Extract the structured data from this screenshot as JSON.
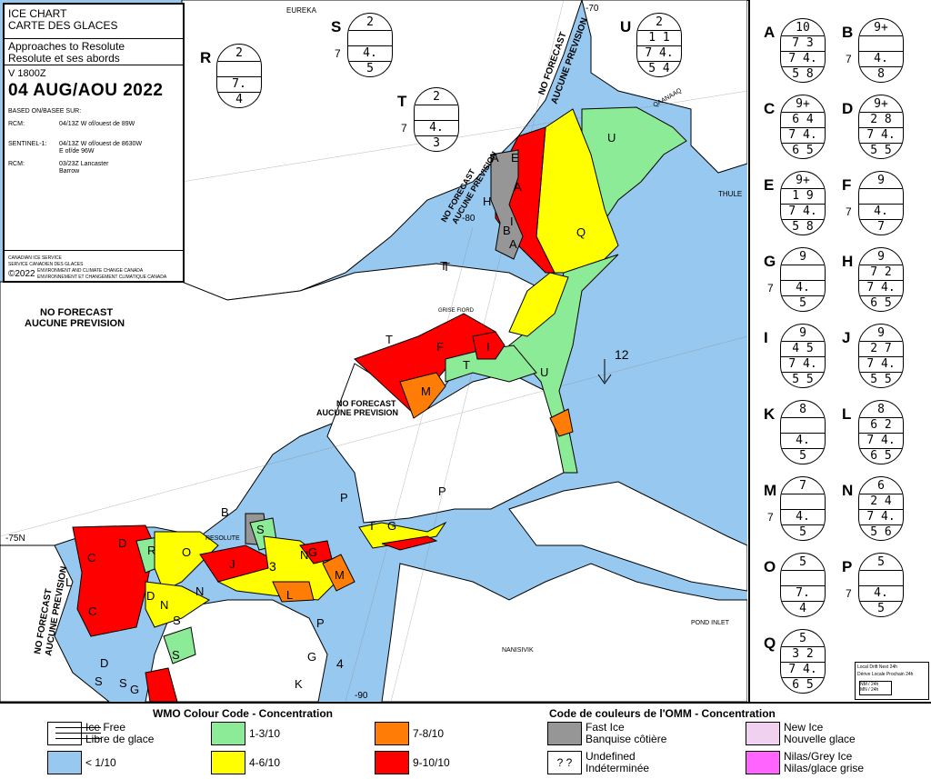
{
  "info": {
    "title1": "ICE CHART",
    "title2": "CARTE DES GLACES",
    "subtitle1": "Approaches to Resolute",
    "subtitle2": "Resolute et ses abords",
    "version": "V 1800Z",
    "date": "04 AUG/AOU 2022",
    "based_on": "BASED ON/BASEE SUR:",
    "sources": [
      {
        "name": "RCM:",
        "line1": "04/13Z W of/ouest de 89W",
        "line2": ""
      },
      {
        "name": "SENTINEL-1:",
        "line1": "04/13Z W of/ouest de 8630W",
        "line2": "E of/de 96W"
      },
      {
        "name": "RCM:",
        "line1": "03/23Z Lancaster",
        "line2": "Barrow"
      }
    ],
    "org1": "CANADIAN ICE SERVICE",
    "org2": "SERVICE CANADIEN DES GLACES",
    "copyright": "©2022",
    "org3": "ENVIRONMENT AND CLIMATE CHANGE CANADA",
    "org4": "ENVIRONNEMENT ET CHANGEMENT CLIMATIQUE CANADA"
  },
  "map_labels": {
    "eureka": "EUREKA",
    "thule": "THULE",
    "qaanaaq": "QAANAAQ",
    "resolute": "RESOLUTE",
    "nanisivik": "NANISIVIK",
    "pond_inlet": "POND INLET",
    "grise_fiord": "GRISE FIORD",
    "no_forecast_en": "NO FORECAST",
    "no_forecast_fr": "AUCUNE PREVISION",
    "lon_70": "-70",
    "lon_80": "-80",
    "lon_90": "-90",
    "lat_75": "-75N",
    "drift_speed": "12",
    "drift_speed_2": "4",
    "drift_speed_3": "3",
    "drift_legend1": "Local Drift Next 24h",
    "drift_legend2": "Dérive Locale Prochain 24h",
    "drift_legend3": "NM / 24h",
    "drift_legend4": "MN / 24h"
  },
  "region_letters": [
    "A",
    "A",
    "A",
    "B",
    "E",
    "H",
    "I",
    "Q",
    "U",
    "T",
    "T",
    "F",
    "I",
    "M",
    "U",
    "T",
    "B",
    "P",
    "P",
    "T",
    "G",
    "S",
    "R",
    "O",
    "N",
    "D",
    "C",
    "C",
    "L",
    "D",
    "N",
    "S",
    "J",
    "N",
    "G",
    "M",
    "L",
    "S",
    "K",
    "G",
    "S",
    "D",
    "S",
    "G",
    "P",
    "T"
  ],
  "egg_codes": [
    {
      "letter": "R",
      "rows": [
        "2",
        "",
        "7.",
        "4"
      ],
      "side": ""
    },
    {
      "letter": "S",
      "rows": [
        "2",
        "",
        "4.",
        "5"
      ],
      "side": "7"
    },
    {
      "letter": "T",
      "rows": [
        "2",
        "",
        "4.",
        "3"
      ],
      "side": "7"
    },
    {
      "letter": "U",
      "rows": [
        "2",
        "1 1",
        "7 4.",
        "5 4"
      ],
      "side": ""
    },
    {
      "letter": "A",
      "rows": [
        "10",
        "7 3",
        "7 4.",
        "5 8"
      ],
      "side": ""
    },
    {
      "letter": "B",
      "rows": [
        "9+",
        "",
        "4.",
        "8"
      ],
      "side": "7"
    },
    {
      "letter": "C",
      "rows": [
        "9+",
        "6 4",
        "7 4.",
        "6 5"
      ],
      "side": ""
    },
    {
      "letter": "D",
      "rows": [
        "9+",
        "2 8",
        "7 4.",
        "5 5"
      ],
      "side": ""
    },
    {
      "letter": "E",
      "rows": [
        "9+",
        "1 9",
        "7 4.",
        "5 8"
      ],
      "side": ""
    },
    {
      "letter": "F",
      "rows": [
        "9",
        "",
        "4.",
        "7"
      ],
      "side": "7"
    },
    {
      "letter": "G",
      "rows": [
        "9",
        "",
        "4.",
        "5"
      ],
      "side": "7"
    },
    {
      "letter": "H",
      "rows": [
        "9",
        "7 2",
        "7 4.",
        "6 5"
      ],
      "side": ""
    },
    {
      "letter": "I",
      "rows": [
        "9",
        "4 5",
        "7 4.",
        "5 5"
      ],
      "side": ""
    },
    {
      "letter": "J",
      "rows": [
        "9",
        "2 7",
        "7 4.",
        "5 5"
      ],
      "side": ""
    },
    {
      "letter": "K",
      "rows": [
        "8",
        "",
        "4.",
        "5"
      ],
      "side": ""
    },
    {
      "letter": "L",
      "rows": [
        "8",
        "6 2",
        "7 4.",
        "6 5"
      ],
      "side": ""
    },
    {
      "letter": "M",
      "rows": [
        "7",
        "",
        "4.",
        "5"
      ],
      "side": "7"
    },
    {
      "letter": "N",
      "rows": [
        "6",
        "2 4",
        "7 4.",
        "5 6"
      ],
      "side": ""
    },
    {
      "letter": "O",
      "rows": [
        "5",
        "",
        "7.",
        "4"
      ],
      "side": ""
    },
    {
      "letter": "P",
      "rows": [
        "5",
        "",
        "4.",
        "5"
      ],
      "side": "7"
    },
    {
      "letter": "Q",
      "rows": [
        "5",
        "3 2",
        "7 4.",
        "6 5"
      ],
      "side": ""
    }
  ],
  "legend": {
    "title_en": "WMO Colour Code - Concentration",
    "title_fr": "Code de couleurs de l'OMM - Concentration",
    "items": [
      {
        "label1": "Ice Free",
        "label2": "Libre de glace",
        "color": "#ffffff"
      },
      {
        "label1": "< 1/10",
        "label2": "",
        "color": "#96c8f0"
      },
      {
        "label1": "1-3/10",
        "label2": "",
        "color": "#8ceb96"
      },
      {
        "label1": "4-6/10",
        "label2": "",
        "color": "#ffff00"
      },
      {
        "label1": "7-8/10",
        "label2": "",
        "color": "#ff7d07"
      },
      {
        "label1": "9-10/10",
        "label2": "",
        "color": "#ff0000"
      },
      {
        "label1": "Fast Ice",
        "label2": "Banquise côtière",
        "color": "#969696"
      },
      {
        "label1": "Undefined",
        "label2": "Indéterminée",
        "color": "#ffffff"
      },
      {
        "label1": "New Ice",
        "label2": "Nouvelle glace",
        "color": "#f0d2f0"
      },
      {
        "label1": "Nilas/Grey Ice",
        "label2": "Nilas/glace grise",
        "color": "#ff64ff"
      }
    ],
    "undefined_symbol": "?  ?"
  }
}
